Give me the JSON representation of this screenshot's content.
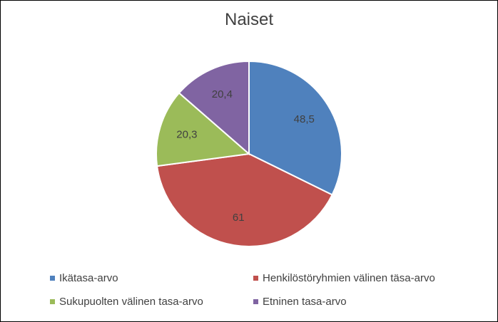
{
  "chart_data": {
    "type": "pie",
    "title": "Naiset",
    "categories": [
      "Ikätasa-arvo",
      "Henkilöstöryhmien välinen täsa-arvo",
      "Sukupuolten välinen tasa-arvo",
      "Etninen tasa-arvo"
    ],
    "values": [
      48.5,
      61,
      20.3,
      20.4
    ],
    "labels": [
      "48,5",
      "61",
      "20,3",
      "20,4"
    ],
    "colors": [
      "#4F81BD",
      "#C0504D",
      "#9BBB59",
      "#8064A2"
    ],
    "legend_position": "bottom"
  }
}
